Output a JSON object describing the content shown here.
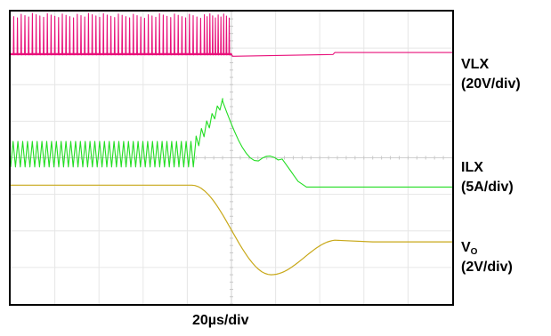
{
  "chart_data": {
    "type": "line",
    "title": "",
    "xlabel": "20µs/div",
    "grid": true,
    "grid_divisions": {
      "x": 10,
      "y": 8
    },
    "series": [
      {
        "name": "VLX",
        "scale": "(20V/div)",
        "color": "#e8107a",
        "baseline_div": 1.15,
        "pulse_high_div": 0.05,
        "switching_end_div": 5.0,
        "step_div": 7.3,
        "levels_div": [
          1.15,
          1.18,
          1.12
        ]
      },
      {
        "name": "ILX",
        "scale": "(5A/div)",
        "color": "#22dd22",
        "ripple_div": [
          3.55,
          4.25
        ],
        "ramp_start_div": 4.2,
        "peak_div": 2.45,
        "peak_time_div": 4.8,
        "plateau_div": 3.95,
        "final_div": 4.8
      },
      {
        "name_main": "V",
        "name_sub": "O",
        "scale": "(2V/div)",
        "color": "#c8a818",
        "initial_div": 4.75,
        "drop_start_div": 4.1,
        "min_div": 7.2,
        "min_time_div": 5.9,
        "final_div": 6.3
      }
    ]
  }
}
